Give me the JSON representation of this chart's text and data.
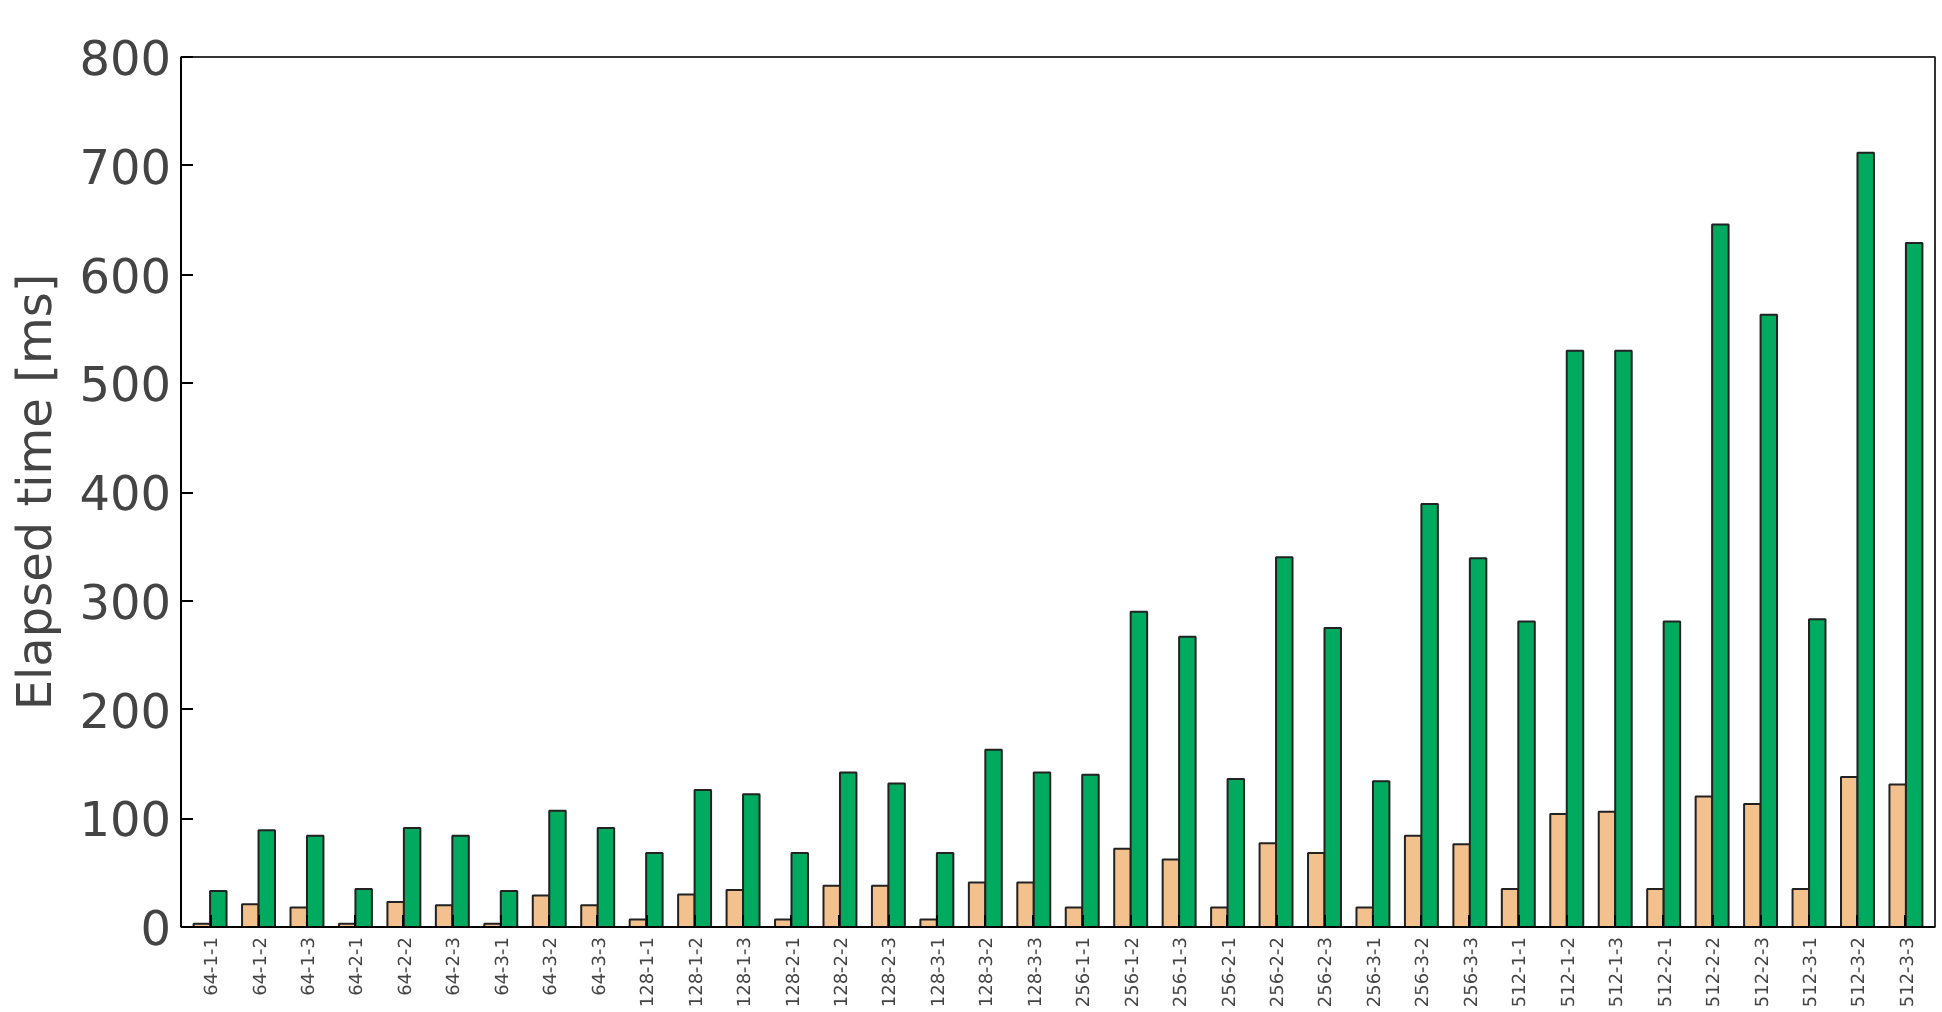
{
  "chart_data": {
    "type": "bar",
    "ylabel": "Elapsed time [ms]",
    "categories": [
      "64-1-1",
      "64-1-2",
      "64-1-3",
      "64-2-1",
      "64-2-2",
      "64-2-3",
      "64-3-1",
      "64-3-2",
      "64-3-3",
      "128-1-1",
      "128-1-2",
      "128-1-3",
      "128-2-1",
      "128-2-2",
      "128-2-3",
      "128-3-1",
      "128-3-2",
      "128-3-3",
      "256-1-1",
      "256-1-2",
      "256-1-3",
      "256-2-1",
      "256-2-2",
      "256-2-3",
      "256-3-1",
      "256-3-2",
      "256-3-3",
      "512-1-1",
      "512-1-2",
      "512-1-3",
      "512-2-1",
      "512-2-2",
      "512-2-3",
      "512-3-1",
      "512-3-2",
      "512-3-3"
    ],
    "series": [
      {
        "color": "#f2c18e",
        "values": [
          3,
          21,
          18,
          3,
          23,
          20,
          3,
          29,
          20,
          7,
          30,
          34,
          7,
          38,
          38,
          7,
          41,
          41,
          18,
          72,
          62,
          18,
          77,
          68,
          18,
          84,
          76,
          35,
          104,
          106,
          35,
          120,
          113,
          35,
          138,
          131
        ]
      },
      {
        "color": "#00aa5e",
        "values": [
          33,
          89,
          84,
          35,
          91,
          84,
          33,
          107,
          91,
          68,
          126,
          122,
          68,
          142,
          132,
          68,
          163,
          142,
          140,
          290,
          267,
          136,
          340,
          275,
          134,
          389,
          339,
          281,
          530,
          530,
          281,
          646,
          563,
          283,
          712,
          629
        ]
      }
    ],
    "ylim": [
      0,
      800
    ],
    "yticks": [
      0,
      100,
      200,
      300,
      400,
      500,
      600,
      700,
      800
    ],
    "grid": false
  }
}
